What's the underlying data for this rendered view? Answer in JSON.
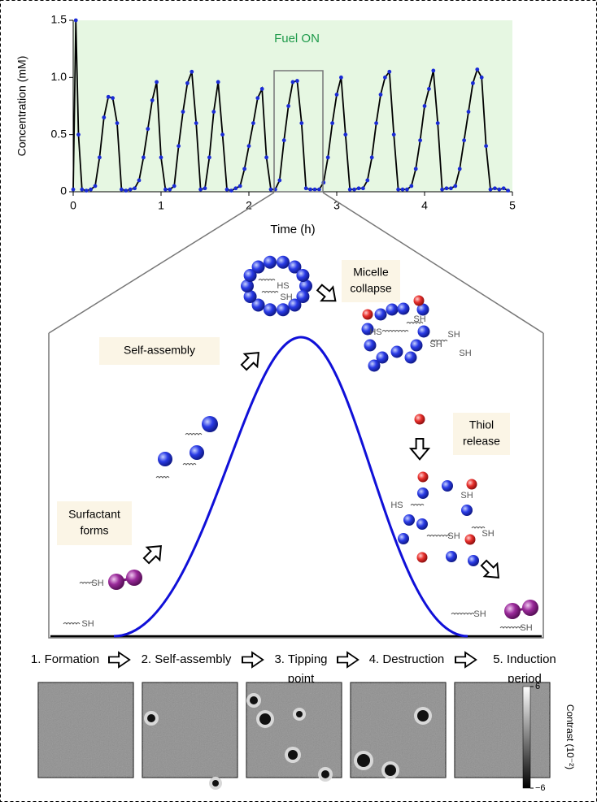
{
  "chart_data": {
    "type": "line",
    "annotation": "Fuel ON",
    "xlabel": "Time (h)",
    "ylabel": "Concentration (mM)",
    "color": "#1a2bd6",
    "line_color": "#000000",
    "background": "#e6f7e2",
    "x": [
      0.0,
      0.03,
      0.06,
      0.1,
      0.15,
      0.2,
      0.25,
      0.3,
      0.35,
      0.4,
      0.45,
      0.5,
      0.55,
      0.6,
      0.65,
      0.7,
      0.75,
      0.8,
      0.85,
      0.9,
      0.95,
      1.0,
      1.05,
      1.1,
      1.15,
      1.2,
      1.25,
      1.3,
      1.35,
      1.4,
      1.45,
      1.5,
      1.55,
      1.6,
      1.65,
      1.7,
      1.75,
      1.8,
      1.85,
      1.9,
      1.95,
      2.0,
      2.05,
      2.1,
      2.15,
      2.2,
      2.25,
      2.3,
      2.35,
      2.4,
      2.45,
      2.5,
      2.55,
      2.6,
      2.65,
      2.7,
      2.75,
      2.8,
      2.85,
      2.9,
      2.95,
      3.0,
      3.05,
      3.1,
      3.15,
      3.2,
      3.25,
      3.3,
      3.35,
      3.4,
      3.45,
      3.5,
      3.55,
      3.6,
      3.65,
      3.7,
      3.75,
      3.8,
      3.85,
      3.9,
      3.95,
      4.0,
      4.05,
      4.1,
      4.15,
      4.2,
      4.25,
      4.3,
      4.35,
      4.4,
      4.45,
      4.5,
      4.55,
      4.6,
      4.65,
      4.7,
      4.75,
      4.8,
      4.85,
      4.9,
      4.95
    ],
    "values": [
      0.02,
      1.5,
      0.5,
      0.02,
      0.01,
      0.02,
      0.05,
      0.3,
      0.65,
      0.83,
      0.82,
      0.6,
      0.02,
      0.01,
      0.02,
      0.03,
      0.1,
      0.3,
      0.55,
      0.8,
      0.96,
      0.3,
      0.02,
      0.02,
      0.05,
      0.4,
      0.7,
      0.95,
      1.05,
      0.6,
      0.02,
      0.03,
      0.3,
      0.7,
      0.96,
      0.5,
      0.02,
      0.01,
      0.03,
      0.05,
      0.2,
      0.4,
      0.6,
      0.82,
      0.9,
      0.3,
      0.02,
      0.02,
      0.1,
      0.45,
      0.75,
      0.96,
      0.97,
      0.6,
      0.03,
      0.02,
      0.02,
      0.02,
      0.08,
      0.3,
      0.6,
      0.85,
      1.0,
      0.5,
      0.02,
      0.02,
      0.03,
      0.03,
      0.1,
      0.3,
      0.6,
      0.85,
      1.0,
      1.05,
      0.5,
      0.02,
      0.02,
      0.02,
      0.05,
      0.2,
      0.45,
      0.75,
      0.9,
      1.06,
      0.6,
      0.02,
      0.03,
      0.03,
      0.05,
      0.2,
      0.45,
      0.7,
      0.95,
      1.07,
      1.0,
      0.4,
      0.02,
      0.03,
      0.02,
      0.03,
      0.01
    ],
    "xlim": [
      0,
      5
    ],
    "ylim": [
      0,
      1.5
    ],
    "xticks": [
      0,
      1,
      2,
      3,
      4,
      5
    ],
    "yticks": [
      0,
      0.5,
      {
        "value": 1,
        "label": "1.0"
      },
      1.5
    ]
  },
  "diagram": {
    "boxes": [
      "Self-assembly",
      [
        "Micelle",
        "collapse"
      ],
      [
        "Thiol",
        "release"
      ],
      [
        "Surfactant",
        "forms"
      ]
    ],
    "chem_labels": [
      "HS",
      "SH",
      "SH",
      "HS",
      "SH",
      "SH",
      "SH",
      "SH",
      "HS",
      "SH",
      "SH",
      "SH",
      "SH",
      "SH",
      "SH"
    ],
    "stages": [
      [
        "1. Formation"
      ],
      [
        "2. Self-assembly"
      ],
      [
        "3. Tipping",
        "point"
      ],
      [
        "4. Destruction"
      ],
      [
        "5. Induction",
        "period"
      ]
    ]
  },
  "colorbar": {
    "label": "Contrast (10⁻²)",
    "ticks": [
      6,
      {
        "value": -6,
        "label": "−6"
      }
    ]
  }
}
